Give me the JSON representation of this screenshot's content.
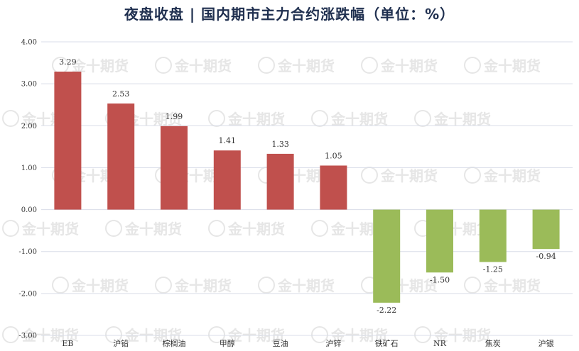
{
  "chart_data": {
    "type": "bar",
    "title": "夜盘收盘 | 国内期市主力合约涨跌幅（单位：%）",
    "categories": [
      "EB",
      "沪铅",
      "棕榈油",
      "甲醇",
      "豆油",
      "沪锌",
      "铁矿石",
      "NR",
      "焦炭",
      "沪银"
    ],
    "values": [
      3.29,
      2.53,
      1.99,
      1.41,
      1.33,
      1.05,
      -2.22,
      -1.5,
      -1.25,
      -0.94
    ],
    "value_labels": [
      "3.29",
      "2.53",
      "1.99",
      "1.41",
      "1.33",
      "1.05",
      "-2.22",
      "-1.50",
      "-1.25",
      "-0.94"
    ],
    "ylim": [
      -3,
      4
    ],
    "yticks": [
      4,
      3,
      2,
      1,
      0,
      -1,
      -2,
      -3
    ],
    "ytick_labels": [
      "4.00",
      "3.00",
      "2.00",
      "1.00",
      "0.00",
      "-1.00",
      "-2.00",
      "-3.00"
    ],
    "grid": true,
    "colors": {
      "positive": "#c0504d",
      "negative": "#9bbb59",
      "grid": "#d9dde8"
    },
    "watermark": "金十期货"
  }
}
